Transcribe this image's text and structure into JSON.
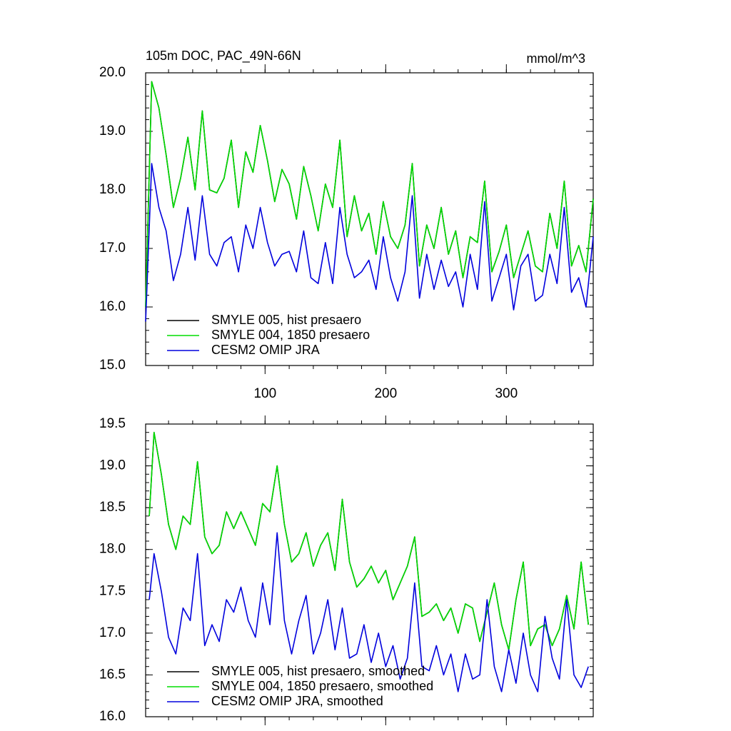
{
  "chart_data": [
    {
      "type": "line",
      "title": "105m DOC, PAC_49N-66N",
      "units": "mmol/m^3",
      "xlim": [
        1,
        372
      ],
      "ylim": [
        15.0,
        20.0
      ],
      "xticks": [
        100,
        200,
        300
      ],
      "xtick_labels": [
        "100",
        "200",
        "300"
      ],
      "yticks": [
        15.0,
        16.0,
        17.0,
        18.0,
        19.0,
        20.0
      ],
      "ytick_labels": [
        "15.0",
        "16.0",
        "17.0",
        "18.0",
        "19.0",
        "20.0"
      ],
      "grid": false,
      "legend_position": "bottom-left",
      "x": [
        1,
        6,
        12,
        18,
        24,
        30,
        36,
        42,
        48,
        54,
        60,
        66,
        72,
        78,
        84,
        90,
        96,
        102,
        108,
        114,
        120,
        126,
        132,
        138,
        144,
        150,
        156,
        162,
        168,
        174,
        180,
        186,
        192,
        198,
        204,
        210,
        216,
        222,
        228,
        234,
        240,
        246,
        252,
        258,
        264,
        270,
        276,
        282,
        288,
        294,
        300,
        306,
        312,
        318,
        324,
        330,
        336,
        342,
        348,
        354,
        360,
        366,
        372
      ],
      "series": [
        {
          "name": "SMYLE 005, hist presaero",
          "color": "#000000",
          "values": [
            16.0,
            19.85,
            19.4,
            18.6,
            17.7,
            18.2,
            18.9,
            18.0,
            19.35,
            18.0,
            17.95,
            18.2,
            18.85,
            17.7,
            18.65,
            18.3,
            19.1,
            18.5,
            17.8,
            18.35,
            18.1,
            17.5,
            18.4,
            17.9,
            17.3,
            18.1,
            17.7,
            18.85,
            17.2,
            17.9,
            17.3,
            17.6,
            16.9,
            17.8,
            17.2,
            17.0,
            17.4,
            18.45,
            16.7,
            17.4,
            17.0,
            17.7,
            16.9,
            17.3,
            16.5,
            17.2,
            17.1,
            18.15,
            16.6,
            16.95,
            17.4,
            16.5,
            16.9,
            17.3,
            16.7,
            16.6,
            17.6,
            17.0,
            18.15,
            16.7,
            17.05,
            16.6,
            17.85
          ]
        },
        {
          "name": "SMYLE 004, 1850 presaero",
          "color": "#00dd00",
          "values": [
            16.0,
            19.85,
            19.4,
            18.6,
            17.7,
            18.2,
            18.9,
            18.0,
            19.35,
            18.0,
            17.95,
            18.2,
            18.85,
            17.7,
            18.65,
            18.3,
            19.1,
            18.5,
            17.8,
            18.35,
            18.1,
            17.5,
            18.4,
            17.9,
            17.3,
            18.1,
            17.7,
            18.85,
            17.2,
            17.9,
            17.3,
            17.6,
            16.9,
            17.8,
            17.2,
            17.0,
            17.4,
            18.45,
            16.7,
            17.4,
            17.0,
            17.7,
            16.9,
            17.3,
            16.5,
            17.2,
            17.1,
            18.15,
            16.6,
            16.95,
            17.4,
            16.5,
            16.9,
            17.3,
            16.7,
            16.6,
            17.6,
            17.0,
            18.15,
            16.7,
            17.05,
            16.6,
            17.85
          ]
        },
        {
          "name": "CESM2 OMIP JRA",
          "color": "#0000dd",
          "values": [
            15.75,
            18.45,
            17.7,
            17.3,
            16.45,
            16.9,
            17.7,
            16.8,
            17.9,
            16.9,
            16.7,
            17.1,
            17.2,
            16.6,
            17.4,
            17.0,
            17.7,
            17.1,
            16.7,
            16.9,
            16.95,
            16.6,
            17.3,
            16.5,
            16.4,
            17.1,
            16.4,
            17.7,
            16.9,
            16.5,
            16.6,
            16.8,
            16.3,
            17.2,
            16.5,
            16.1,
            16.6,
            17.9,
            16.15,
            16.9,
            16.3,
            16.8,
            16.35,
            16.6,
            16.0,
            16.9,
            16.3,
            17.8,
            16.1,
            16.5,
            16.9,
            15.95,
            16.7,
            16.9,
            16.1,
            16.2,
            16.9,
            16.4,
            17.7,
            16.25,
            16.5,
            16.0,
            17.2
          ]
        }
      ],
      "legend": [
        "SMYLE 005, hist presaero",
        "SMYLE 004, 1850 presaero",
        "CESM2 OMIP JRA"
      ]
    },
    {
      "type": "line",
      "title": "",
      "xlim": [
        1,
        372
      ],
      "ylim": [
        16.0,
        19.5
      ],
      "xticks": [
        100,
        200,
        300
      ],
      "xtick_labels": [],
      "yticks": [
        16.0,
        16.5,
        17.0,
        17.5,
        18.0,
        18.5,
        19.0,
        19.5
      ],
      "ytick_labels": [
        "16.0",
        "16.5",
        "17.0",
        "17.5",
        "18.0",
        "18.5",
        "19.0",
        "19.5"
      ],
      "grid": false,
      "legend_position": "bottom-left",
      "x": [
        4,
        8,
        14,
        20,
        26,
        32,
        38,
        44,
        50,
        56,
        62,
        68,
        74,
        80,
        86,
        92,
        98,
        104,
        110,
        116,
        122,
        128,
        134,
        140,
        146,
        152,
        158,
        164,
        170,
        176,
        182,
        188,
        194,
        200,
        206,
        212,
        218,
        224,
        230,
        236,
        242,
        248,
        254,
        260,
        266,
        272,
        278,
        284,
        290,
        296,
        302,
        308,
        314,
        320,
        326,
        332,
        338,
        344,
        350,
        356,
        362,
        368
      ],
      "series": [
        {
          "name": "SMYLE 005, hist presaero, smoothed",
          "color": "#000000",
          "values": [
            18.4,
            19.4,
            18.9,
            18.3,
            18.0,
            18.4,
            18.3,
            19.05,
            18.15,
            17.95,
            18.05,
            18.45,
            18.25,
            18.45,
            18.25,
            18.05,
            18.55,
            18.45,
            19.0,
            18.3,
            17.85,
            17.95,
            18.2,
            17.8,
            18.05,
            18.2,
            17.75,
            18.6,
            17.85,
            17.55,
            17.65,
            17.8,
            17.6,
            17.75,
            17.4,
            17.6,
            17.8,
            18.15,
            17.2,
            17.25,
            17.35,
            17.15,
            17.3,
            17.0,
            17.35,
            17.3,
            16.9,
            17.25,
            17.6,
            17.1,
            16.8,
            17.4,
            17.85,
            16.85,
            17.05,
            17.1,
            16.85,
            17.05,
            17.45,
            17.05,
            17.85,
            17.1
          ]
        },
        {
          "name": "SMYLE 004, 1850 presaero, smoothed",
          "color": "#00dd00",
          "values": [
            18.4,
            19.4,
            18.9,
            18.3,
            18.0,
            18.4,
            18.3,
            19.05,
            18.15,
            17.95,
            18.05,
            18.45,
            18.25,
            18.45,
            18.25,
            18.05,
            18.55,
            18.45,
            19.0,
            18.3,
            17.85,
            17.95,
            18.2,
            17.8,
            18.05,
            18.2,
            17.75,
            18.6,
            17.85,
            17.55,
            17.65,
            17.8,
            17.6,
            17.75,
            17.4,
            17.6,
            17.8,
            18.15,
            17.2,
            17.25,
            17.35,
            17.15,
            17.3,
            17.0,
            17.35,
            17.3,
            16.9,
            17.25,
            17.6,
            17.1,
            16.8,
            17.4,
            17.85,
            16.85,
            17.05,
            17.1,
            16.85,
            17.05,
            17.45,
            17.05,
            17.85,
            17.1
          ]
        },
        {
          "name": "CESM2 OMIP JRA, smoothed",
          "color": "#0000dd",
          "values": [
            17.4,
            17.95,
            17.5,
            16.95,
            16.75,
            17.3,
            17.15,
            17.95,
            16.85,
            17.1,
            16.9,
            17.4,
            17.25,
            17.55,
            17.15,
            16.95,
            17.6,
            17.1,
            18.2,
            17.15,
            16.75,
            17.15,
            17.45,
            16.75,
            17.0,
            17.4,
            16.8,
            17.3,
            16.7,
            16.75,
            17.1,
            16.65,
            17.0,
            16.6,
            16.85,
            16.45,
            16.7,
            17.6,
            16.6,
            16.55,
            16.85,
            16.5,
            16.75,
            16.3,
            16.75,
            16.45,
            16.5,
            17.4,
            16.6,
            16.3,
            16.8,
            16.4,
            17.0,
            16.5,
            16.3,
            17.2,
            16.7,
            16.45,
            17.4,
            16.5,
            16.35,
            16.6
          ]
        }
      ],
      "legend": [
        "SMYLE 005, hist presaero, smoothed",
        "SMYLE 004, 1850 presaero, smoothed",
        "CESM2 OMIP JRA, smoothed"
      ]
    }
  ]
}
